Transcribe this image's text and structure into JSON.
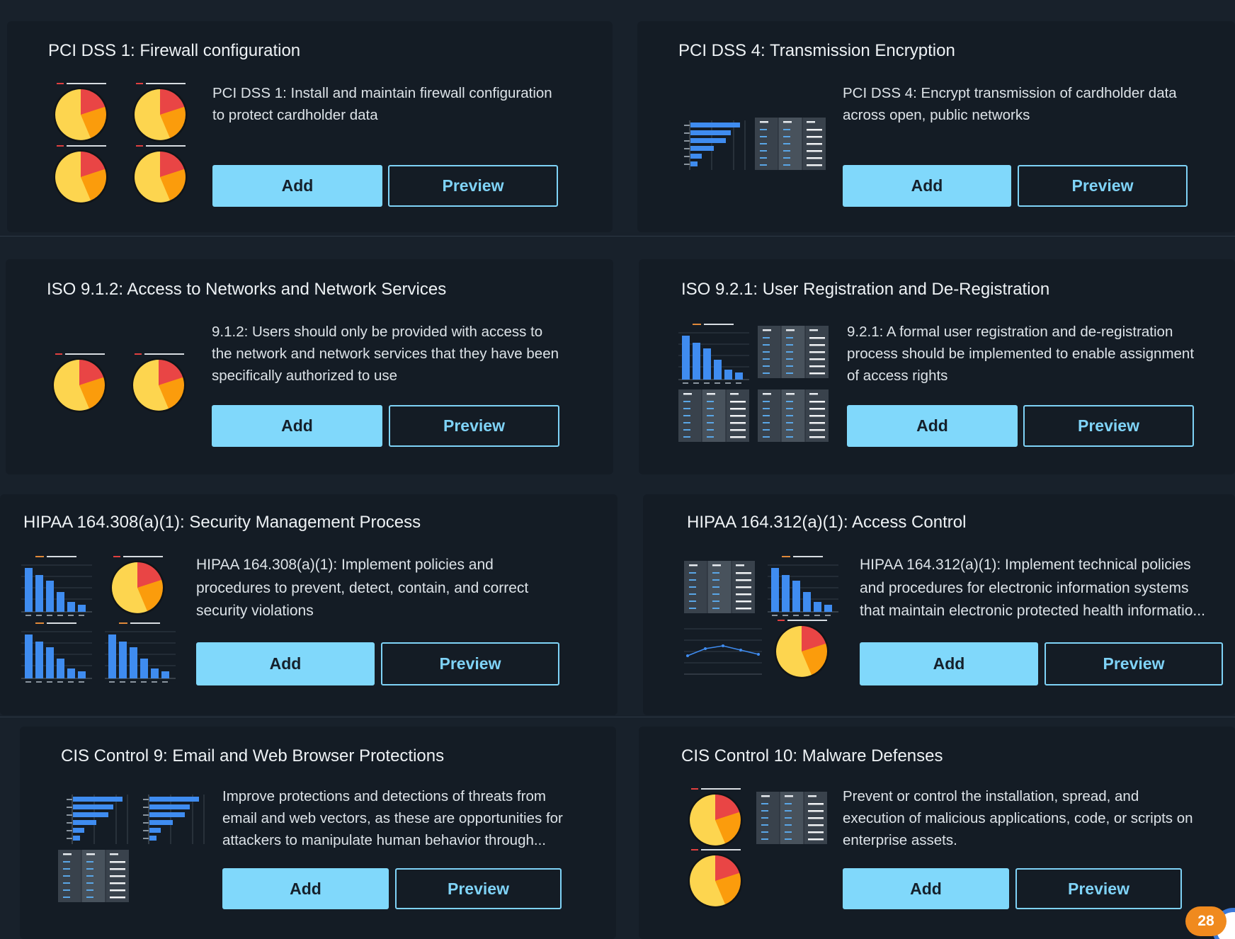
{
  "cards": [
    {
      "title": "PCI DSS 1: Firewall configuration",
      "description": "PCI DSS 1: Install and maintain firewall configuration to protect cardholder data",
      "add_label": "Add",
      "preview_label": "Preview"
    },
    {
      "title": "PCI DSS 4: Transmission Encryption",
      "description": "PCI DSS 4: Encrypt transmission of cardholder data across open, public networks",
      "add_label": "Add",
      "preview_label": "Preview"
    },
    {
      "title": "ISO 9.1.2: Access to Networks and Network Services",
      "description": "9.1.2: Users should only be provided with access to the network and network services that they have been specifically authorized to use",
      "add_label": "Add",
      "preview_label": "Preview"
    },
    {
      "title": "ISO 9.2.1: User Registration and De-Registration",
      "description": "9.2.1: A formal user registration and de-registration process should be implemented to enable assignment of access rights",
      "add_label": "Add",
      "preview_label": "Preview"
    },
    {
      "title": "HIPAA 164.308(a)(1): Security Management Process",
      "description": "HIPAA 164.308(a)(1): Implement policies and procedures to prevent, detect, contain, and correct security violations",
      "add_label": "Add",
      "preview_label": "Preview"
    },
    {
      "title": "HIPAA 164.312(a)(1): Access Control",
      "description": "HIPAA 164.312(a)(1): Implement technical policies and procedures for electronic information systems that maintain electronic protected health informatio...",
      "add_label": "Add",
      "preview_label": "Preview"
    },
    {
      "title": "CIS Control 9: Email and Web Browser Protections",
      "description": "Improve protections and detections of threats from email and web vectors, as these are opportunities for attackers to manipulate human behavior through...",
      "add_label": "Add",
      "preview_label": "Preview"
    },
    {
      "title": "CIS Control 10: Malware Defenses",
      "description": "Prevent or control the installation, spread, and execution of malicious applications, code, or scripts on enterprise assets.",
      "add_label": "Add",
      "preview_label": "Preview"
    }
  ],
  "notification_badge": {
    "count": "28"
  },
  "colors": {
    "accent": "#80d8fb",
    "pie_yellow": "#fdd54f",
    "pie_orange": "#fb9c0c",
    "pie_red": "#e94545",
    "bar_blue": "#3f8cf0",
    "badge": "#f08a1e"
  },
  "thumbnail_icons": [
    "pie-widget-icon",
    "hbar-widget-icon",
    "table-widget-icon",
    "vbar-widget-icon",
    "line-widget-icon"
  ]
}
